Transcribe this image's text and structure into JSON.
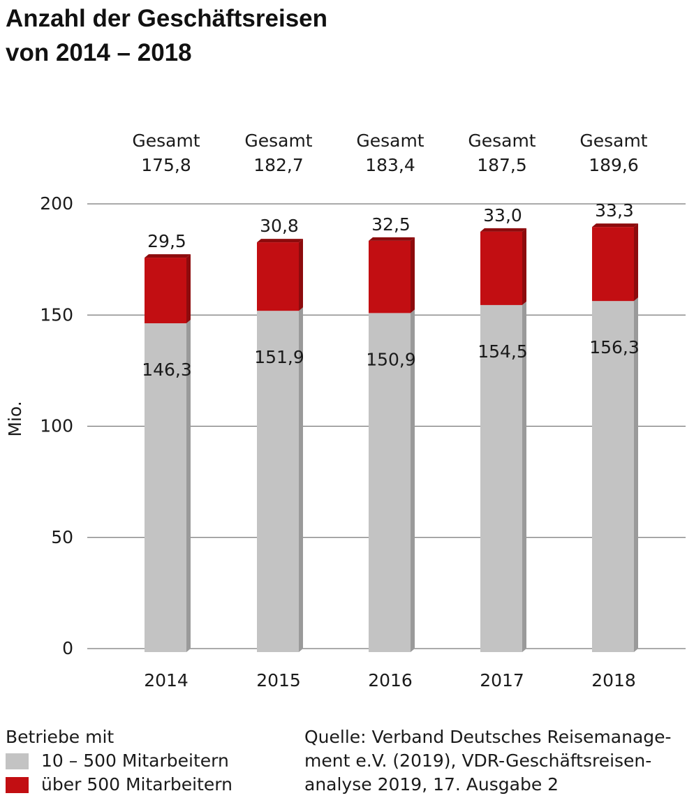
{
  "title": {
    "line1": "Anzahl der Geschäftsreisen",
    "line2": "von 2014 – 2018"
  },
  "colors": {
    "lower": "#c3c3c3",
    "lower_side": "#9a9a9a",
    "upper": "#c20e12",
    "upper_side": "#8d0b0d",
    "grid": "#777777"
  },
  "chart_data": {
    "type": "bar",
    "stacked": true,
    "categories": [
      "2014",
      "2015",
      "2016",
      "2017",
      "2018"
    ],
    "series": [
      {
        "name": "10 – 500 Mitarbeitern",
        "values": [
          146.3,
          151.9,
          150.9,
          154.5,
          156.3
        ],
        "labels": [
          "146,3",
          "151,9",
          "150,9",
          "154,5",
          "156,3"
        ]
      },
      {
        "name": "über 500 Mitarbeitern",
        "values": [
          29.5,
          30.8,
          32.5,
          33.0,
          33.3
        ],
        "labels": [
          "29,5",
          "30,8",
          "32,5",
          "33,0",
          "33,3"
        ]
      }
    ],
    "totals_label": "Gesamt",
    "totals": [
      "175,8",
      "182,7",
      "183,4",
      "187,5",
      "189,6"
    ],
    "ylabel": "Mio.",
    "ylim": [
      0,
      200
    ],
    "yticks": [
      0,
      50,
      100,
      150,
      200
    ],
    "grid": true
  },
  "legend": {
    "heading": "Betriebe mit",
    "items": [
      {
        "label": "10 – 500 Mitarbeitern"
      },
      {
        "label": "über 500 Mitarbeitern"
      }
    ]
  },
  "source": {
    "line1": "Quelle: Verband Deutsches Reisemanage-",
    "line2": "ment e.V. (2019), VDR-Geschäftsreisen-",
    "line3": "analyse 2019, 17. Ausgabe 2"
  }
}
